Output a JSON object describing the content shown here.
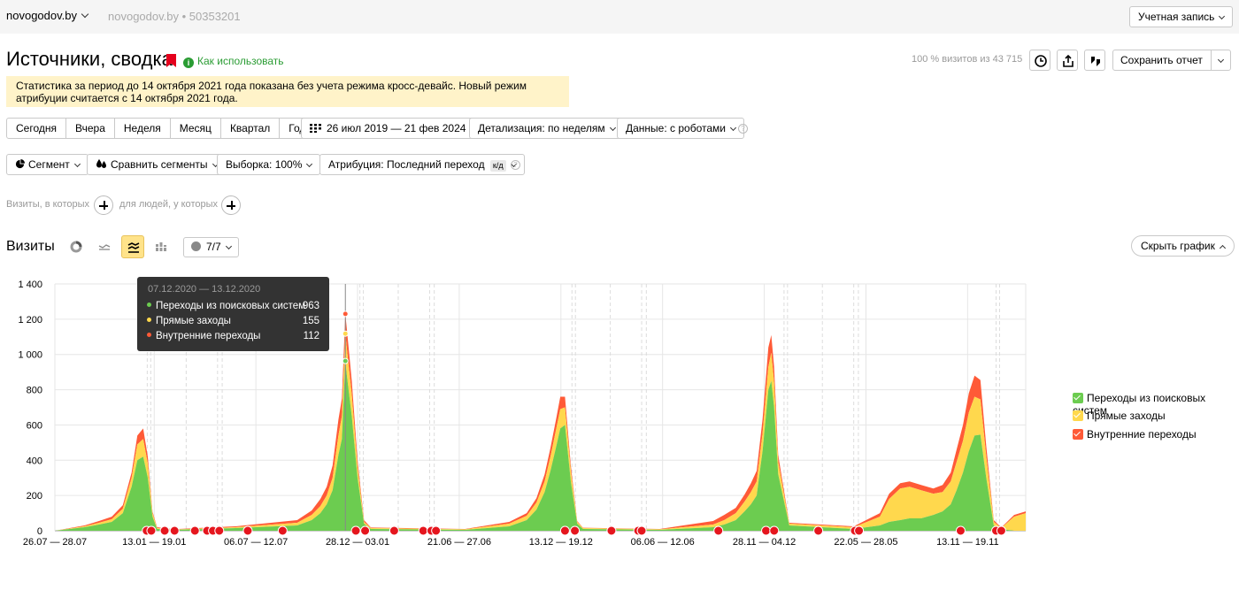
{
  "header": {
    "site": "novogodov.by",
    "counter_site": "novogodov.by",
    "counter_id": "50353201",
    "account_label": "Учетная запись"
  },
  "report": {
    "title": "Источники, сводка",
    "how_to": "Как использовать",
    "visits_share": "100 % визитов из 43 715",
    "save_label": "Сохранить отчет",
    "warning": "Статистика за период до 14 октября 2021 года показана без учета режима кросс-девайс. Новый режим атрибуции считается с 14 октября 2021 года."
  },
  "filters": {
    "periods": [
      "Сегодня",
      "Вчера",
      "Неделя",
      "Месяц",
      "Квартал",
      "Год"
    ],
    "date_range": "26 июл 2019 — 21 фев 2024",
    "detail": "Детализация: по неделям",
    "data": "Данные: с роботами",
    "segment": "Сегмент",
    "compare": "Сравнить сегменты",
    "sample": "Выборка: 100%",
    "attribution": "Атрибуция: Последний переход",
    "attribution_badge": "к/д",
    "visits_where": "Визиты, в которых",
    "people_where": "для людей, у которых"
  },
  "chart_section": {
    "title": "Визиты",
    "series_count": "7/7",
    "hide_label": "Скрыть график"
  },
  "tooltip": {
    "date": "07.12.2020 — 13.12.2020",
    "rows": [
      {
        "name": "Переходы из поисковых систем",
        "value": "963"
      },
      {
        "name": "Прямые заходы",
        "value": "155"
      },
      {
        "name": "Внутренние переходы",
        "value": "112"
      }
    ]
  },
  "colors": {
    "search": "#6ccc50",
    "direct": "#ffd84d",
    "internal": "#ff5a37",
    "accent": "#ffe38a"
  },
  "chart_data": {
    "type": "area",
    "stacked": true,
    "title": "",
    "xlabel": "",
    "ylabel": "",
    "ylim": [
      0,
      1400
    ],
    "yticks": [
      0,
      200,
      400,
      600,
      800,
      1000,
      1200,
      1400
    ],
    "xlim": [
      "2019-07-26",
      "2024-02-21"
    ],
    "xtick_labels": [
      "26.07 — 28.07",
      "13.01 — 19.01",
      "06.07 — 12.07",
      "28.12 — 03.01",
      "21.06 — 27.06",
      "13.12 — 19.12",
      "06.06 — 12.06",
      "28.11 — 04.12",
      "22.05 — 28.05",
      "13.11 — 19.11"
    ],
    "xtick_dates": [
      "2019-07-26",
      "2020-01-13",
      "2020-07-06",
      "2020-12-28",
      "2021-06-21",
      "2021-12-13",
      "2022-06-06",
      "2022-11-28",
      "2023-05-22",
      "2023-11-13"
    ],
    "grid": true,
    "legend_position": "right",
    "series": [
      {
        "name": "Переходы из поисковых систем",
        "color": "#6ccc50",
        "x": [
          "2019-07-26",
          "2019-09-15",
          "2019-10-10",
          "2019-11-01",
          "2019-11-20",
          "2019-12-05",
          "2019-12-15",
          "2019-12-25",
          "2020-01-02",
          "2020-01-10",
          "2020-01-18",
          "2020-02-15",
          "2020-06-01",
          "2020-09-15",
          "2020-10-10",
          "2020-10-25",
          "2020-11-05",
          "2020-11-15",
          "2020-11-25",
          "2020-12-01",
          "2020-12-07",
          "2020-12-10",
          "2020-12-18",
          "2020-12-28",
          "2021-01-08",
          "2021-01-20",
          "2021-07-01",
          "2021-09-15",
          "2021-10-15",
          "2021-11-01",
          "2021-11-15",
          "2021-11-25",
          "2021-12-05",
          "2021-12-12",
          "2021-12-20",
          "2021-12-30",
          "2022-01-10",
          "2022-01-20",
          "2022-06-01",
          "2022-09-01",
          "2022-09-20",
          "2022-10-10",
          "2022-10-25",
          "2022-11-05",
          "2022-11-15",
          "2022-11-25",
          "2022-12-05",
          "2022-12-10",
          "2022-12-15",
          "2022-12-22",
          "2023-01-10",
          "2023-05-01",
          "2023-06-15",
          "2023-07-01",
          "2023-07-20",
          "2023-08-05",
          "2023-08-25",
          "2023-09-15",
          "2023-10-01",
          "2023-10-15",
          "2023-10-25",
          "2023-11-05",
          "2023-11-15",
          "2023-11-25",
          "2023-12-05",
          "2023-12-15",
          "2023-12-28",
          "2024-01-10",
          "2024-02-01",
          "2024-02-21"
        ],
        "values": [
          0,
          20,
          35,
          50,
          100,
          250,
          400,
          420,
          300,
          80,
          10,
          5,
          15,
          30,
          60,
          100,
          150,
          230,
          430,
          520,
          963,
          870,
          650,
          300,
          40,
          10,
          5,
          25,
          60,
          120,
          220,
          340,
          480,
          580,
          600,
          280,
          40,
          10,
          5,
          20,
          35,
          60,
          110,
          150,
          200,
          450,
          800,
          850,
          700,
          320,
          30,
          10,
          30,
          50,
          60,
          70,
          70,
          90,
          110,
          150,
          230,
          330,
          450,
          540,
          545,
          300,
          30,
          10,
          0,
          0
        ]
      },
      {
        "name": "Прямые заходы",
        "color": "#ffd84d",
        "x": [
          "2019-07-26",
          "2019-09-15",
          "2019-10-10",
          "2019-11-01",
          "2019-11-20",
          "2019-12-05",
          "2019-12-15",
          "2019-12-25",
          "2020-01-02",
          "2020-01-10",
          "2020-01-18",
          "2020-02-15",
          "2020-06-01",
          "2020-09-15",
          "2020-10-10",
          "2020-10-25",
          "2020-11-05",
          "2020-11-15",
          "2020-11-25",
          "2020-12-01",
          "2020-12-07",
          "2020-12-10",
          "2020-12-18",
          "2020-12-28",
          "2021-01-08",
          "2021-01-20",
          "2021-07-01",
          "2021-09-15",
          "2021-10-15",
          "2021-11-01",
          "2021-11-15",
          "2021-11-25",
          "2021-12-05",
          "2021-12-12",
          "2021-12-20",
          "2021-12-30",
          "2022-01-10",
          "2022-01-20",
          "2022-06-01",
          "2022-09-01",
          "2022-09-20",
          "2022-10-10",
          "2022-10-25",
          "2022-11-05",
          "2022-11-15",
          "2022-11-25",
          "2022-12-05",
          "2022-12-10",
          "2022-12-15",
          "2022-12-22",
          "2023-01-10",
          "2023-05-01",
          "2023-06-15",
          "2023-07-01",
          "2023-07-20",
          "2023-08-05",
          "2023-08-25",
          "2023-09-15",
          "2023-10-01",
          "2023-10-15",
          "2023-10-25",
          "2023-11-05",
          "2023-11-15",
          "2023-11-25",
          "2023-12-05",
          "2023-12-15",
          "2023-12-28",
          "2024-01-10",
          "2024-02-01",
          "2024-02-21"
        ],
        "values": [
          0,
          5,
          10,
          15,
          25,
          50,
          90,
          100,
          80,
          20,
          5,
          2,
          5,
          15,
          30,
          40,
          50,
          70,
          110,
          130,
          155,
          150,
          120,
          60,
          10,
          5,
          3,
          15,
          25,
          40,
          60,
          80,
          100,
          110,
          100,
          60,
          10,
          5,
          3,
          15,
          25,
          40,
          55,
          70,
          80,
          100,
          130,
          160,
          140,
          70,
          10,
          10,
          50,
          130,
          180,
          180,
          160,
          120,
          110,
          130,
          160,
          180,
          220,
          220,
          200,
          120,
          20,
          5,
          80,
          100
        ]
      },
      {
        "name": "Внутренние переходы",
        "color": "#ff5a37",
        "x": [
          "2019-07-26",
          "2019-09-15",
          "2019-10-10",
          "2019-11-01",
          "2019-11-20",
          "2019-12-05",
          "2019-12-15",
          "2019-12-25",
          "2020-01-02",
          "2020-01-10",
          "2020-01-18",
          "2020-02-15",
          "2020-06-01",
          "2020-09-15",
          "2020-10-10",
          "2020-10-25",
          "2020-11-05",
          "2020-11-15",
          "2020-11-25",
          "2020-12-01",
          "2020-12-07",
          "2020-12-10",
          "2020-12-18",
          "2020-12-28",
          "2021-01-08",
          "2021-01-20",
          "2021-07-01",
          "2021-09-15",
          "2021-10-15",
          "2021-11-01",
          "2021-11-15",
          "2021-11-25",
          "2021-12-05",
          "2021-12-12",
          "2021-12-20",
          "2021-12-30",
          "2022-01-10",
          "2022-01-20",
          "2022-06-01",
          "2022-09-01",
          "2022-09-20",
          "2022-10-10",
          "2022-10-25",
          "2022-11-05",
          "2022-11-15",
          "2022-11-25",
          "2022-12-05",
          "2022-12-10",
          "2022-12-15",
          "2022-12-22",
          "2023-01-10",
          "2023-05-01",
          "2023-06-15",
          "2023-07-01",
          "2023-07-20",
          "2023-08-05",
          "2023-08-25",
          "2023-09-15",
          "2023-10-01",
          "2023-10-15",
          "2023-10-25",
          "2023-11-05",
          "2023-11-15",
          "2023-11-25",
          "2023-12-05",
          "2023-12-15",
          "2023-12-28",
          "2024-01-10",
          "2024-02-01",
          "2024-02-21"
        ],
        "values": [
          0,
          5,
          10,
          15,
          20,
          30,
          50,
          60,
          40,
          10,
          5,
          2,
          5,
          15,
          25,
          40,
          50,
          70,
          90,
          100,
          112,
          110,
          80,
          40,
          10,
          3,
          2,
          10,
          15,
          25,
          40,
          50,
          60,
          70,
          60,
          30,
          5,
          2,
          2,
          20,
          30,
          30,
          40,
          50,
          60,
          80,
          110,
          100,
          90,
          40,
          5,
          5,
          20,
          30,
          30,
          30,
          30,
          30,
          40,
          50,
          70,
          90,
          110,
          120,
          110,
          60,
          10,
          3,
          10,
          10
        ]
      }
    ]
  }
}
